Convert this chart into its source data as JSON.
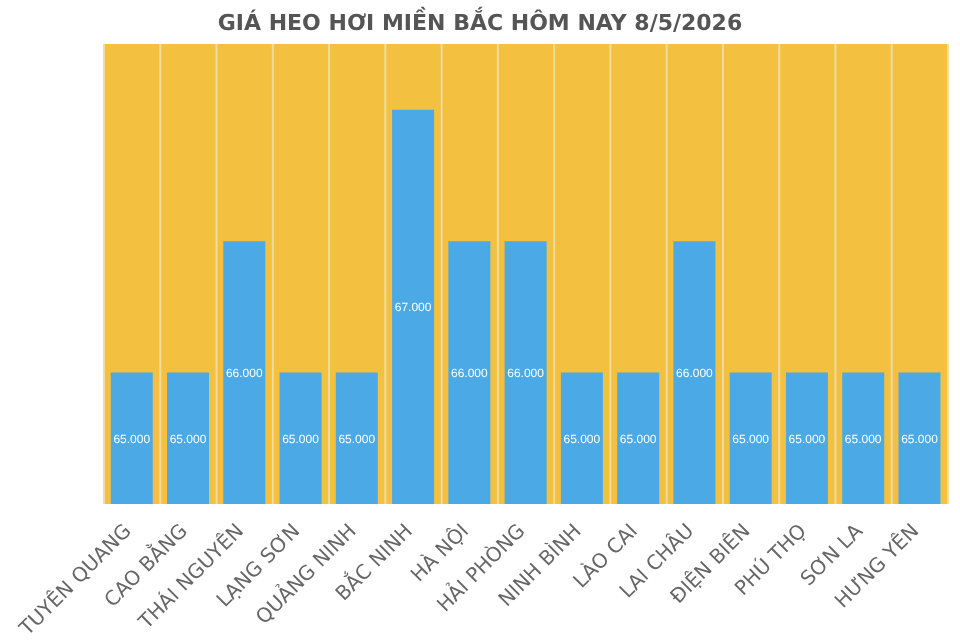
{
  "chart_data": {
    "type": "bar",
    "title": "GIÁ HEO HƠI MIỀN BẮC HÔM NAY 8/5/2026",
    "categories": [
      "TUYÊN QUANG",
      "CAO BẰNG",
      "THÁI NGUYÊN",
      "LẠNG SƠN",
      "QUẢNG NINH",
      "BẮC NINH",
      "HÀ NỘI",
      "HẢI PHÒNG",
      "NINH BÌNH",
      "LÀO CAI",
      "LAI CHÂU",
      "ĐIỆN BIÊN",
      "PHÚ THỌ",
      "SƠN LA",
      "HƯNG YÊN"
    ],
    "values": [
      65000,
      65000,
      66000,
      65000,
      65000,
      67000,
      66000,
      66000,
      65000,
      65000,
      66000,
      65000,
      65000,
      65000,
      65000
    ],
    "value_labels": [
      "65.000",
      "65.000",
      "66.000",
      "65.000",
      "65.000",
      "67.000",
      "66.000",
      "66.000",
      "65.000",
      "65.000",
      "66.000",
      "65.000",
      "65.000",
      "65.000",
      "65.000"
    ],
    "color": "#4baae6",
    "ylim": [
      64000,
      67500
    ],
    "grid": "x"
  }
}
